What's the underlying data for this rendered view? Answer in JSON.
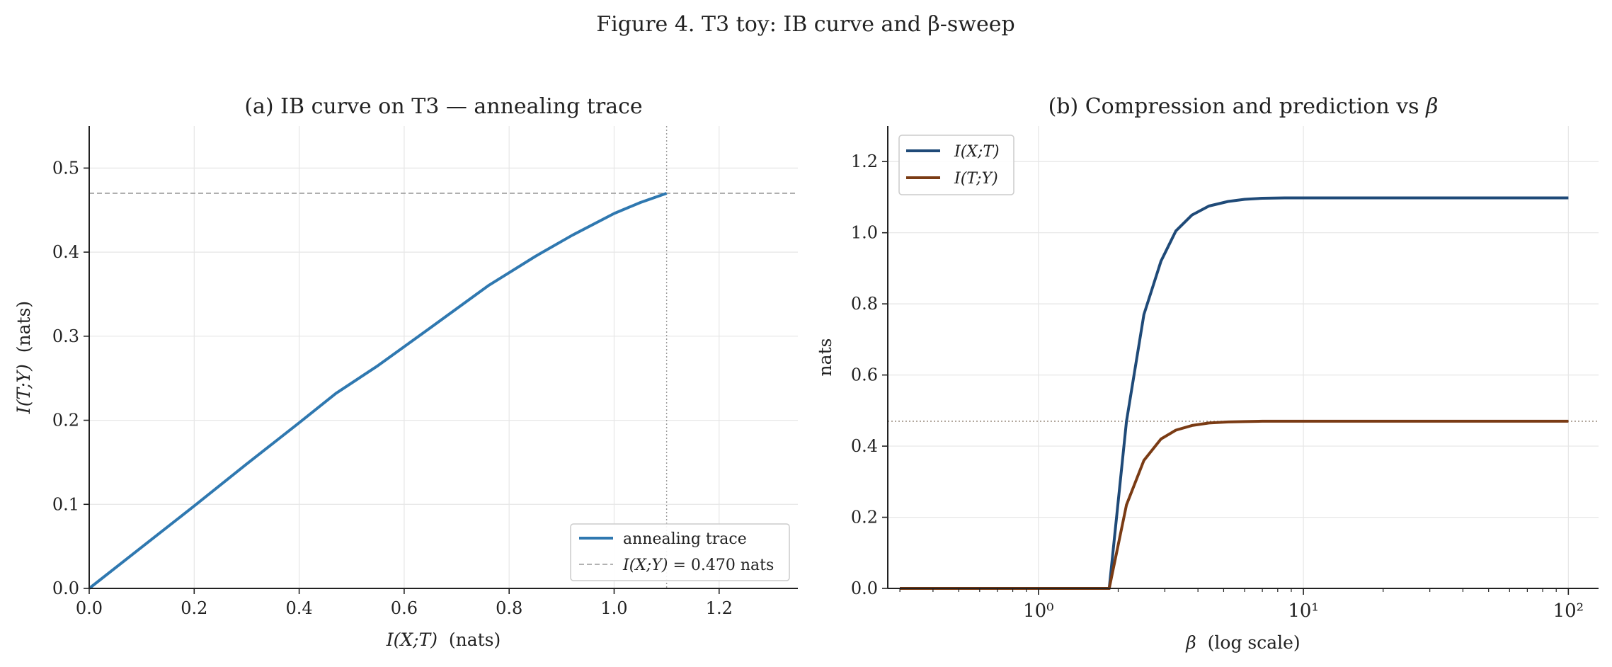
{
  "figure_title": "Figure 4. T3 toy: IB curve and β-sweep",
  "colors": {
    "trace": "#2f78b0",
    "ixt": "#1f4a78",
    "ity": "#7a3b14",
    "ref_line": "#999999",
    "ref_dotted": "#8a7a6a",
    "grid": "#e6e6e6"
  },
  "chart_data": [
    {
      "type": "line",
      "title": "(a) IB curve on T3 — annealing trace",
      "xlabel": "I(X;T)  (nats)",
      "ylabel": "I(T;Y)  (nats)",
      "xlim": [
        0,
        1.35
      ],
      "ylim": [
        0,
        0.55
      ],
      "xticks": [
        0.0,
        0.2,
        0.4,
        0.6,
        0.8,
        1.0,
        1.2
      ],
      "xtick_labels": [
        "0.0",
        "0.2",
        "0.4",
        "0.6",
        "0.8",
        "1.0",
        "1.2"
      ],
      "yticks": [
        0.0,
        0.1,
        0.2,
        0.3,
        0.4,
        0.5
      ],
      "ytick_labels": [
        "0.0",
        "0.1",
        "0.2",
        "0.3",
        "0.4",
        "0.5"
      ],
      "grid": true,
      "legend_position": "lower-right",
      "series": [
        {
          "name": "annealing trace",
          "x": [
            0.0,
            0.1,
            0.2,
            0.3,
            0.4,
            0.47,
            0.55,
            0.65,
            0.76,
            0.85,
            0.92,
            1.0,
            1.05,
            1.1
          ],
          "y": [
            0.0,
            0.049,
            0.098,
            0.148,
            0.197,
            0.232,
            0.265,
            0.31,
            0.36,
            0.395,
            0.42,
            0.446,
            0.459,
            0.47
          ]
        }
      ],
      "reference_lines": [
        {
          "orientation": "horizontal",
          "value": 0.47,
          "style": "dashed",
          "label": "I(X;Y) = 0.470 nats"
        },
        {
          "orientation": "vertical",
          "value": 1.1,
          "style": "dotted"
        }
      ]
    },
    {
      "type": "line",
      "title": "(b) Compression and prediction vs β",
      "xlabel": "β  (log scale)",
      "ylabel": "nats",
      "xscale": "log",
      "xlim": [
        0.27,
        130
      ],
      "ylim": [
        0,
        1.3
      ],
      "xticks": [
        1,
        10,
        100
      ],
      "xtick_labels": [
        "10⁰",
        "10¹",
        "10²"
      ],
      "yticks": [
        0.0,
        0.2,
        0.4,
        0.6,
        0.8,
        1.0,
        1.2
      ],
      "ytick_labels": [
        "0.0",
        "0.2",
        "0.4",
        "0.6",
        "0.8",
        "1.0",
        "1.2"
      ],
      "grid": true,
      "legend_position": "top-left",
      "x": [
        0.3,
        0.5,
        1.0,
        1.5,
        1.85,
        2.15,
        2.5,
        2.9,
        3.3,
        3.8,
        4.4,
        5.2,
        6.0,
        7.0,
        8.5,
        10,
        20,
        50,
        100
      ],
      "series": [
        {
          "name": "I(X;T)",
          "values": [
            0,
            0,
            0,
            0,
            0,
            0.47,
            0.77,
            0.92,
            1.005,
            1.05,
            1.075,
            1.088,
            1.094,
            1.097,
            1.098,
            1.098,
            1.098,
            1.098,
            1.098
          ]
        },
        {
          "name": "I(T;Y)",
          "values": [
            0,
            0,
            0,
            0,
            0,
            0.235,
            0.36,
            0.42,
            0.445,
            0.458,
            0.465,
            0.468,
            0.469,
            0.47,
            0.47,
            0.47,
            0.47,
            0.47,
            0.47
          ]
        }
      ],
      "reference_lines": [
        {
          "orientation": "horizontal",
          "value": 0.47,
          "style": "dotted"
        }
      ]
    }
  ]
}
